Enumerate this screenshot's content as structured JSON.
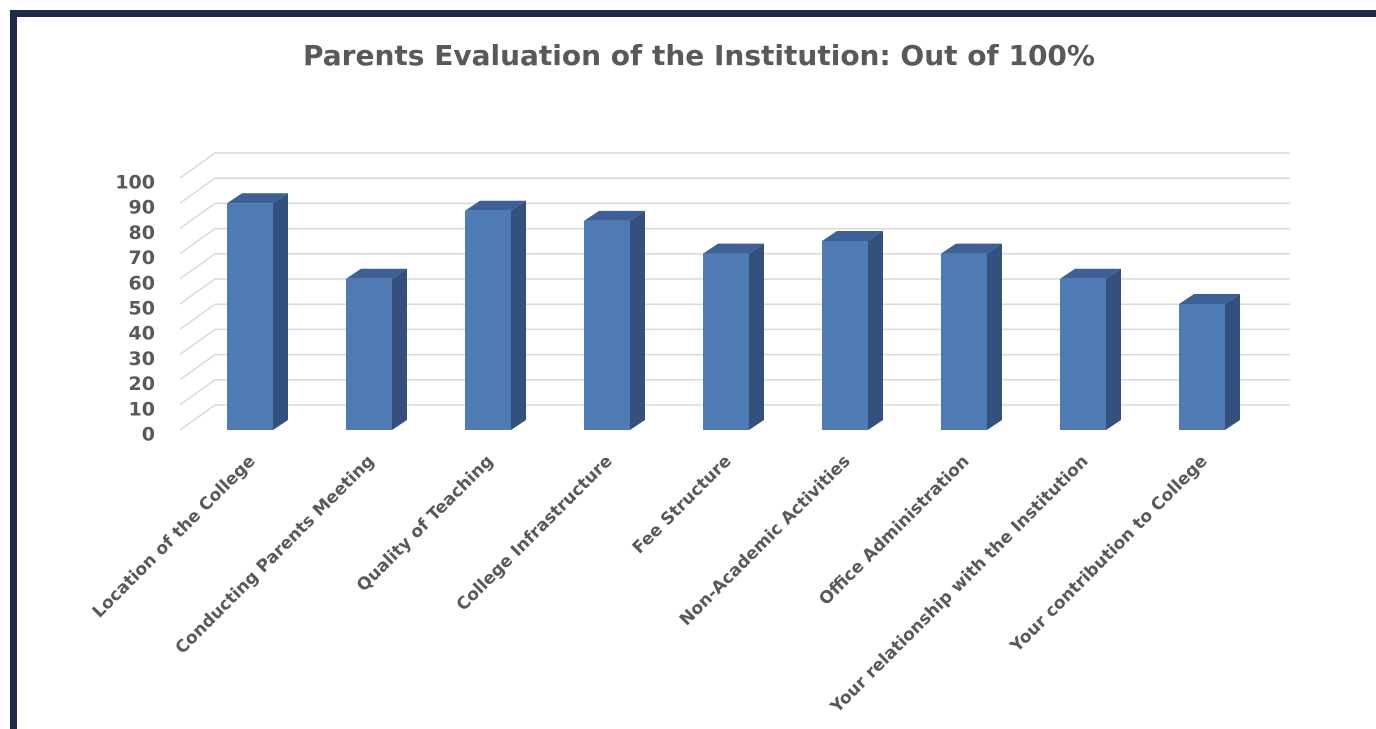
{
  "chart_data": {
    "type": "bar3d",
    "title": "Parents Evaluation of the Institution: Out of 100%",
    "categories": [
      "Location of the College",
      "Conducting Parents Meeting",
      "Quality of Teaching",
      "College Infrastructure",
      "Fee Structure",
      "Non-Academic Activities",
      "Office Administration",
      "Your relationship with the Institution",
      "Your contribution to College"
    ],
    "values": [
      90,
      60,
      87,
      83,
      70,
      75,
      70,
      60,
      50
    ],
    "color": "#4f7bb5",
    "ylim": [
      0,
      100
    ],
    "yticks": [
      0,
      10,
      20,
      30,
      40,
      50,
      60,
      70,
      80,
      90,
      100
    ],
    "grid": true
  }
}
